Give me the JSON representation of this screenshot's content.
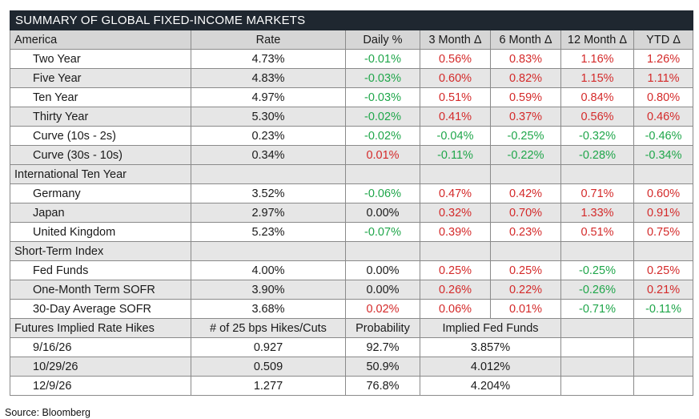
{
  "title": "SUMMARY OF GLOBAL FIXED-INCOME MARKETS",
  "header": {
    "section": "America",
    "columns": [
      "Rate",
      "Daily %",
      "3 Month Δ",
      "6 Month Δ",
      "12 Month Δ",
      "YTD Δ"
    ]
  },
  "america": [
    {
      "label": "Two Year",
      "rate": "4.73%",
      "daily": "-0.01%",
      "m3": "0.56%",
      "m6": "0.83%",
      "m12": "1.16%",
      "ytd": "1.26%"
    },
    {
      "label": "Five Year",
      "rate": "4.83%",
      "daily": "-0.03%",
      "m3": "0.60%",
      "m6": "0.82%",
      "m12": "1.15%",
      "ytd": "1.11%"
    },
    {
      "label": "Ten Year",
      "rate": "4.97%",
      "daily": "-0.03%",
      "m3": "0.51%",
      "m6": "0.59%",
      "m12": "0.84%",
      "ytd": "0.80%"
    },
    {
      "label": "Thirty Year",
      "rate": "5.30%",
      "daily": "-0.02%",
      "m3": "0.41%",
      "m6": "0.37%",
      "m12": "0.56%",
      "ytd": "0.46%"
    },
    {
      "label": "Curve (10s - 2s)",
      "rate": "0.23%",
      "daily": "-0.02%",
      "m3": "-0.04%",
      "m6": "-0.25%",
      "m12": "-0.32%",
      "ytd": "-0.46%"
    },
    {
      "label": "Curve (30s - 10s)",
      "rate": "0.34%",
      "daily": "0.01%",
      "m3": "-0.11%",
      "m6": "-0.22%",
      "m12": "-0.28%",
      "ytd": "-0.34%"
    }
  ],
  "international_title": "International Ten Year",
  "international": [
    {
      "label": "Germany",
      "rate": "3.52%",
      "daily": "-0.06%",
      "m3": "0.47%",
      "m6": "0.42%",
      "m12": "0.71%",
      "ytd": "0.60%"
    },
    {
      "label": "Japan",
      "rate": "2.97%",
      "daily": "0.00%",
      "m3": "0.32%",
      "m6": "0.70%",
      "m12": "1.33%",
      "ytd": "0.91%"
    },
    {
      "label": "United Kingdom",
      "rate": "5.23%",
      "daily": "-0.07%",
      "m3": "0.39%",
      "m6": "0.23%",
      "m12": "0.51%",
      "ytd": "0.75%"
    }
  ],
  "short_term_title": "Short-Term Index",
  "short_term": [
    {
      "label": "Fed Funds",
      "rate": "4.00%",
      "daily": "0.00%",
      "m3": "0.25%",
      "m6": "0.25%",
      "m12": "-0.25%",
      "ytd": "0.25%"
    },
    {
      "label": "One-Month Term SOFR",
      "rate": "3.90%",
      "daily": "0.00%",
      "m3": "0.26%",
      "m6": "0.22%",
      "m12": "-0.26%",
      "ytd": "0.21%"
    },
    {
      "label": "30-Day Average SOFR",
      "rate": "3.68%",
      "daily": "0.02%",
      "m3": "0.06%",
      "m6": "0.01%",
      "m12": "-0.71%",
      "ytd": "-0.11%"
    }
  ],
  "futures": {
    "title": "Futures Implied Rate Hikes",
    "col_hikes": "# of 25 bps Hikes/Cuts",
    "col_prob": "Probability",
    "col_fed": "Implied Fed Funds",
    "rows": [
      {
        "date": "9/16/26",
        "hikes": "0.927",
        "prob": "92.7%",
        "fed": "3.857%"
      },
      {
        "date": "10/29/26",
        "hikes": "0.509",
        "prob": "50.9%",
        "fed": "4.012%"
      },
      {
        "date": "12/9/26",
        "hikes": "1.277",
        "prob": "76.8%",
        "fed": "4.204%"
      }
    ]
  },
  "source": "Source: Bloomberg",
  "colors": {
    "positive": "#d42a2a",
    "negative": "#1fa64a",
    "title_bg": "#1f2730"
  }
}
